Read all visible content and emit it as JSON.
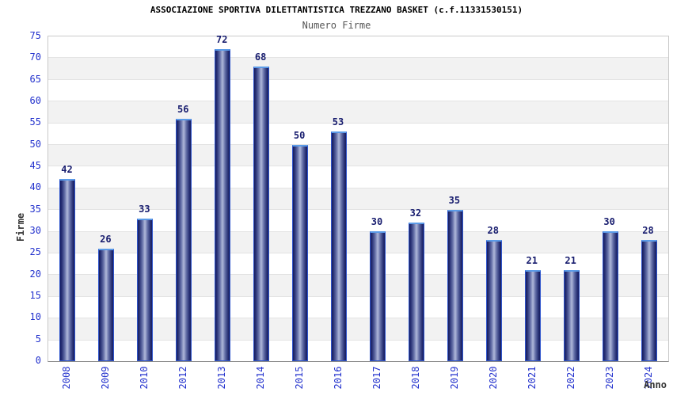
{
  "header": {
    "title": "ASSOCIAZIONE SPORTIVA DILETTANTISTICA TREZZANO BASKET (c.f.11331530151)",
    "subtitle": "Numero Firme"
  },
  "chart_data": {
    "type": "bar",
    "title": "ASSOCIAZIONE SPORTIVA DILETTANTISTICA TREZZANO BASKET (c.f.11331530151)",
    "subtitle": "Numero Firme",
    "categories": [
      "2008",
      "2009",
      "2010",
      "2012",
      "2013",
      "2014",
      "2015",
      "2016",
      "2017",
      "2018",
      "2019",
      "2020",
      "2021",
      "2022",
      "2023",
      "2024"
    ],
    "values": [
      42,
      26,
      33,
      56,
      72,
      68,
      50,
      53,
      30,
      32,
      35,
      28,
      21,
      21,
      30,
      28
    ],
    "xlabel": "Anno",
    "ylabel": "Firme",
    "ylim": [
      0,
      75
    ],
    "ytick_step": 5,
    "yticks": [
      0,
      5,
      10,
      15,
      20,
      25,
      30,
      35,
      40,
      45,
      50,
      55,
      60,
      65,
      70,
      75
    ],
    "grid": true,
    "legend": false,
    "band_fill_alternate": true,
    "colors": {
      "bar_dark": "#161c5e",
      "bar_light": "#b0b8da",
      "bar_border": "#2f55cc",
      "bar_top_cap": "#5b9be8",
      "value_label": "#171c6e",
      "tick_label": "#2231cd",
      "band_gray": "#f2f2f2",
      "gridline": "#e3e3e3",
      "axis_line": "#8a8a8a",
      "title": "#000000",
      "subtitle": "#555555",
      "axis_label": "#333333"
    }
  }
}
